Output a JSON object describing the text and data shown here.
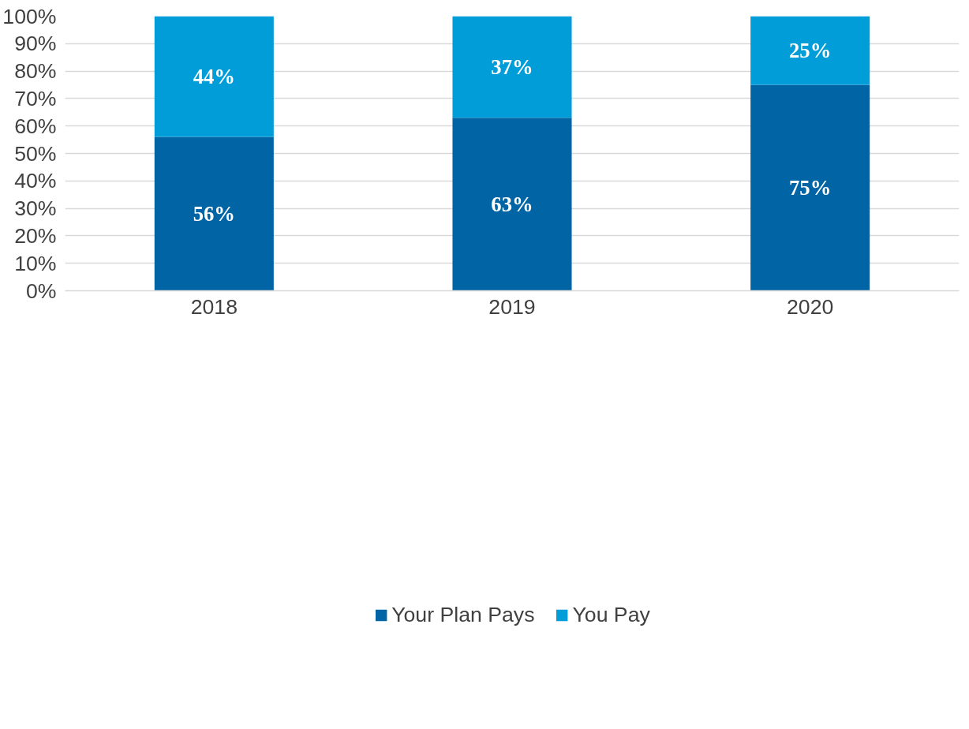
{
  "chart_data": {
    "type": "bar",
    "stacked": true,
    "categories": [
      "2018",
      "2019",
      "2020"
    ],
    "series": [
      {
        "name": "Your Plan Pays",
        "color": "#0064a5",
        "values": [
          56,
          63,
          75
        ],
        "value_labels": [
          "56%",
          "63%",
          "75%"
        ]
      },
      {
        "name": "You Pay",
        "color": "#009dd9",
        "values": [
          44,
          37,
          25
        ],
        "value_labels": [
          "44%",
          "37%",
          "25%"
        ]
      }
    ],
    "ylim": [
      0,
      100
    ],
    "yticks": [
      {
        "value": 0,
        "label": "0%"
      },
      {
        "value": 10,
        "label": "10%"
      },
      {
        "value": 20,
        "label": "20%"
      },
      {
        "value": 30,
        "label": "30%"
      },
      {
        "value": 40,
        "label": "40%"
      },
      {
        "value": 50,
        "label": "50%"
      },
      {
        "value": 60,
        "label": "60%"
      },
      {
        "value": 70,
        "label": "70%"
      },
      {
        "value": 80,
        "label": "80%"
      },
      {
        "value": 90,
        "label": "90%"
      },
      {
        "value": 100,
        "label": "100%"
      }
    ],
    "grid": "y",
    "legend": "bottom"
  }
}
